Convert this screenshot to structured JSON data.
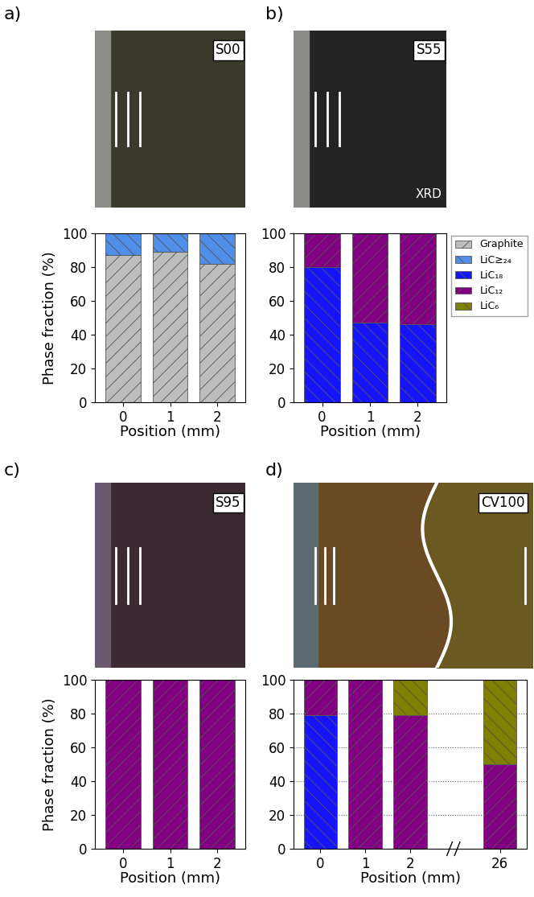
{
  "chart_data": [
    {
      "type": "bar",
      "stacked": true,
      "annotations": [
        "a)",
        "S00"
      ],
      "x_label": "Position (mm)",
      "y_label": "Phase fraction (%)",
      "categories": [
        "0",
        "1",
        "2"
      ],
      "ylim": [
        0,
        100
      ],
      "yticks": [
        0,
        20,
        40,
        60,
        80,
        100
      ],
      "grid": false,
      "series": [
        {
          "name": "Graphite",
          "color": "#bdbdbd",
          "values": [
            87,
            89,
            82
          ]
        },
        {
          "name": "LiC≥₂₄",
          "color": "#4f8fea",
          "values": [
            13,
            11,
            18
          ]
        },
        {
          "name": "LiC₁₈",
          "color": "#1414ff",
          "values": [
            0,
            0,
            0
          ]
        },
        {
          "name": "LiC₁₂",
          "color": "#820082",
          "values": [
            0,
            0,
            0
          ]
        },
        {
          "name": "LiC₆",
          "color": "#7f7f00",
          "values": [
            0,
            0,
            0
          ]
        }
      ]
    },
    {
      "type": "bar",
      "stacked": true,
      "annotations": [
        "b)",
        "S55",
        "XRD"
      ],
      "x_label": "Position (mm)",
      "legend": "upper left",
      "categories": [
        "0",
        "1",
        "2"
      ],
      "ylim": [
        0,
        100
      ],
      "yticks": [
        0,
        20,
        40,
        60,
        80,
        100
      ],
      "grid": false,
      "series": [
        {
          "name": "Graphite",
          "color": "#bdbdbd",
          "values": [
            0,
            0,
            0
          ]
        },
        {
          "name": "LiC≥₂₄",
          "color": "#4f8fea",
          "values": [
            0,
            0,
            0
          ]
        },
        {
          "name": "LiC₁₈",
          "color": "#1414ff",
          "values": [
            80,
            47,
            46
          ]
        },
        {
          "name": "LiC₁₂",
          "color": "#820082",
          "values": [
            20,
            53,
            54
          ]
        },
        {
          "name": "LiC₆",
          "color": "#7f7f00",
          "values": [
            0,
            0,
            0
          ]
        }
      ]
    },
    {
      "type": "bar",
      "stacked": true,
      "annotations": [
        "c)",
        "S95"
      ],
      "x_label": "Position (mm)",
      "y_label": "Phase fraction (%)",
      "categories": [
        "0",
        "1",
        "2"
      ],
      "ylim": [
        0,
        100
      ],
      "yticks": [
        0,
        20,
        40,
        60,
        80,
        100
      ],
      "grid": false,
      "series": [
        {
          "name": "Graphite",
          "color": "#bdbdbd",
          "values": [
            0,
            0,
            0
          ]
        },
        {
          "name": "LiC≥₂₄",
          "color": "#4f8fea",
          "values": [
            0,
            0,
            0
          ]
        },
        {
          "name": "LiC₁₈",
          "color": "#1414ff",
          "values": [
            0,
            0,
            0
          ]
        },
        {
          "name": "LiC₁₂",
          "color": "#820082",
          "values": [
            100,
            100,
            100
          ]
        },
        {
          "name": "LiC₆",
          "color": "#7f7f00",
          "values": [
            0,
            0,
            0
          ]
        }
      ]
    },
    {
      "type": "bar",
      "stacked": true,
      "annotations": [
        "d)",
        "CV100"
      ],
      "x_label": "Position (mm)",
      "categories": [
        "0",
        "1",
        "2",
        null,
        "26"
      ],
      "ylim": [
        0,
        100
      ],
      "yticks": [
        0,
        20,
        40,
        60,
        80,
        100
      ],
      "grid": true,
      "series": [
        {
          "name": "Graphite",
          "color": "#bdbdbd",
          "values": [
            0,
            0,
            0,
            null,
            0
          ]
        },
        {
          "name": "LiC≥₂₄",
          "color": "#4f8fea",
          "values": [
            0,
            0,
            0,
            null,
            0
          ]
        },
        {
          "name": "LiC₁₈",
          "color": "#1414ff",
          "values": [
            79,
            0,
            0,
            null,
            0
          ]
        },
        {
          "name": "LiC₁₂",
          "color": "#820082",
          "values": [
            21,
            100,
            79,
            null,
            50
          ]
        },
        {
          "name": "LiC₆",
          "color": "#7f7f00",
          "values": [
            0,
            0,
            21,
            null,
            50
          ]
        }
      ]
    }
  ]
}
